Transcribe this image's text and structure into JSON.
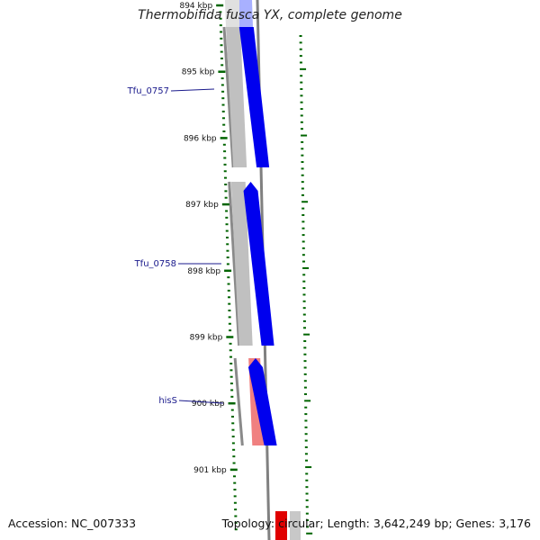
{
  "title": "Thermobifida fusca YX, complete genome",
  "accession": "Accession: NC_007333",
  "topology": "Topology: circular; Length: 3,642,249 bp; Genes: 3,176",
  "ticks": [
    "894 kbp",
    "895 kbp",
    "896 kbp",
    "897 kbp",
    "898 kbp",
    "899 kbp",
    "900 kbp",
    "901 kbp"
  ],
  "genes": [
    {
      "name": "Tfu_0757",
      "start_kbp": 894.0,
      "end_kbp": 896.45,
      "color": "#0000ee"
    },
    {
      "name": "Tfu_0758",
      "start_kbp": 896.65,
      "end_kbp": 899.15,
      "color": "#0000ee"
    },
    {
      "name": "hisS",
      "start_kbp": 899.3,
      "end_kbp": 900.65,
      "color": "#0000ee"
    }
  ],
  "colors": {
    "cds": "#0000ee",
    "gene_shadow": "#c0c0c0",
    "rna_highlight": "#f08080",
    "tick": "#006400",
    "backbone": "#808080",
    "label_line": "#1a1a8c"
  }
}
